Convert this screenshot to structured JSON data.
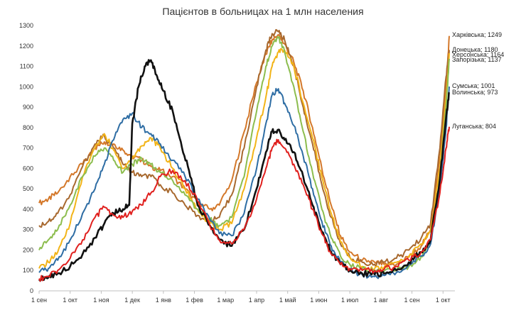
{
  "chart_data": {
    "type": "line",
    "title": "Пацієнтов в больницах на 1 млн населения",
    "xlabel": "",
    "ylabel": "",
    "ylim": [
      0,
      1300
    ],
    "y_ticks": [
      0,
      100,
      200,
      300,
      400,
      500,
      600,
      700,
      800,
      900,
      1000,
      1100,
      1200,
      1300
    ],
    "x_tick_labels": [
      "1 сен",
      "1 окт",
      "1 ноя",
      "1 дек",
      "1 янв",
      "1 фев",
      "1 мар",
      "1 апр",
      "1 май",
      "1 июн",
      "1 июл",
      "1 авг",
      "1 сен",
      "1 окт"
    ],
    "x_domain": [
      0,
      13.2
    ],
    "grid": false,
    "series": [
      {
        "name": "Харківська",
        "end_label": "Харківська; 1249",
        "color": "#d4782a",
        "width": 2,
        "points": [
          [
            0,
            430
          ],
          [
            0.3,
            450
          ],
          [
            0.6,
            480
          ],
          [
            1,
            560
          ],
          [
            1.4,
            620
          ],
          [
            1.8,
            700
          ],
          [
            2.1,
            730
          ],
          [
            2.4,
            720
          ],
          [
            2.7,
            690
          ],
          [
            3,
            660
          ],
          [
            3.3,
            640
          ],
          [
            3.6,
            610
          ],
          [
            3.9,
            590
          ],
          [
            4.3,
            560
          ],
          [
            4.7,
            500
          ],
          [
            5.1,
            430
          ],
          [
            5.5,
            400
          ],
          [
            5.8,
            420
          ],
          [
            6.2,
            540
          ],
          [
            6.6,
            780
          ],
          [
            7,
            1020
          ],
          [
            7.3,
            1160
          ],
          [
            7.5,
            1230
          ],
          [
            7.7,
            1255
          ],
          [
            7.9,
            1210
          ],
          [
            8.2,
            1120
          ],
          [
            8.5,
            980
          ],
          [
            8.8,
            800
          ],
          [
            9.1,
            600
          ],
          [
            9.4,
            420
          ],
          [
            9.7,
            270
          ],
          [
            10,
            190
          ],
          [
            10.4,
            150
          ],
          [
            10.8,
            140
          ],
          [
            11.1,
            130
          ],
          [
            11.5,
            130
          ],
          [
            11.9,
            165
          ],
          [
            12.3,
            220
          ],
          [
            12.6,
            300
          ],
          [
            12.9,
            650
          ],
          [
            13.1,
            1000
          ],
          [
            13.2,
            1249
          ]
        ]
      },
      {
        "name": "Донецька",
        "end_label": "Донецька; 1180",
        "color": "#a8692f",
        "width": 2,
        "points": [
          [
            0,
            320
          ],
          [
            0.3,
            340
          ],
          [
            0.6,
            380
          ],
          [
            1,
            470
          ],
          [
            1.4,
            610
          ],
          [
            1.8,
            720
          ],
          [
            2.1,
            760
          ],
          [
            2.4,
            700
          ],
          [
            2.7,
            620
          ],
          [
            3,
            580
          ],
          [
            3.3,
            560
          ],
          [
            3.6,
            560
          ],
          [
            3.9,
            520
          ],
          [
            4.3,
            480
          ],
          [
            4.7,
            420
          ],
          [
            5.1,
            370
          ],
          [
            5.5,
            340
          ],
          [
            5.8,
            360
          ],
          [
            6.2,
            470
          ],
          [
            6.6,
            700
          ],
          [
            7,
            1000
          ],
          [
            7.3,
            1180
          ],
          [
            7.5,
            1260
          ],
          [
            7.7,
            1270
          ],
          [
            7.9,
            1230
          ],
          [
            8.2,
            1100
          ],
          [
            8.5,
            900
          ],
          [
            8.8,
            720
          ],
          [
            9.1,
            520
          ],
          [
            9.4,
            360
          ],
          [
            9.7,
            230
          ],
          [
            10,
            165
          ],
          [
            10.4,
            140
          ],
          [
            10.8,
            130
          ],
          [
            11.1,
            140
          ],
          [
            11.5,
            160
          ],
          [
            11.9,
            200
          ],
          [
            12.3,
            260
          ],
          [
            12.6,
            330
          ],
          [
            12.9,
            700
          ],
          [
            13.1,
            1050
          ],
          [
            13.2,
            1180
          ]
        ]
      },
      {
        "name": "Херсонська",
        "end_label": "Херсонська; 1164",
        "color": "#f2b418",
        "width": 2,
        "points": [
          [
            0,
            110
          ],
          [
            0.3,
            140
          ],
          [
            0.6,
            190
          ],
          [
            1,
            330
          ],
          [
            1.4,
            560
          ],
          [
            1.8,
            700
          ],
          [
            2.1,
            770
          ],
          [
            2.4,
            690
          ],
          [
            2.7,
            600
          ],
          [
            3,
            650
          ],
          [
            3.3,
            710
          ],
          [
            3.6,
            750
          ],
          [
            3.9,
            700
          ],
          [
            4.3,
            600
          ],
          [
            4.7,
            500
          ],
          [
            5.1,
            400
          ],
          [
            5.5,
            330
          ],
          [
            5.8,
            300
          ],
          [
            6.2,
            330
          ],
          [
            6.6,
            500
          ],
          [
            7,
            750
          ],
          [
            7.3,
            950
          ],
          [
            7.5,
            1100
          ],
          [
            7.7,
            1170
          ],
          [
            7.9,
            1180
          ],
          [
            8.2,
            1100
          ],
          [
            8.5,
            920
          ],
          [
            8.8,
            750
          ],
          [
            9.1,
            560
          ],
          [
            9.4,
            380
          ],
          [
            9.7,
            240
          ],
          [
            10,
            165
          ],
          [
            10.4,
            120
          ],
          [
            10.8,
            110
          ],
          [
            11.1,
            115
          ],
          [
            11.5,
            140
          ],
          [
            11.9,
            170
          ],
          [
            12.3,
            230
          ],
          [
            12.6,
            290
          ],
          [
            12.9,
            600
          ],
          [
            13.1,
            950
          ],
          [
            13.2,
            1164
          ]
        ]
      },
      {
        "name": "Запорізька",
        "end_label": "Запорізька; 1137",
        "color": "#8cbd4e",
        "width": 2,
        "points": [
          [
            0,
            200
          ],
          [
            0.3,
            250
          ],
          [
            0.6,
            300
          ],
          [
            1,
            420
          ],
          [
            1.4,
            560
          ],
          [
            1.8,
            660
          ],
          [
            2.1,
            700
          ],
          [
            2.4,
            640
          ],
          [
            2.7,
            580
          ],
          [
            3,
            620
          ],
          [
            3.3,
            650
          ],
          [
            3.6,
            620
          ],
          [
            3.9,
            580
          ],
          [
            4.3,
            540
          ],
          [
            4.7,
            470
          ],
          [
            5.1,
            400
          ],
          [
            5.5,
            350
          ],
          [
            5.8,
            320
          ],
          [
            6.2,
            360
          ],
          [
            6.6,
            560
          ],
          [
            7,
            880
          ],
          [
            7.3,
            1100
          ],
          [
            7.5,
            1200
          ],
          [
            7.7,
            1240
          ],
          [
            7.9,
            1170
          ],
          [
            8.2,
            1000
          ],
          [
            8.5,
            780
          ],
          [
            8.8,
            580
          ],
          [
            9.1,
            400
          ],
          [
            9.4,
            260
          ],
          [
            9.7,
            170
          ],
          [
            10,
            130
          ],
          [
            10.4,
            110
          ],
          [
            10.8,
            100
          ],
          [
            11.1,
            95
          ],
          [
            11.5,
            100
          ],
          [
            11.9,
            120
          ],
          [
            12.3,
            170
          ],
          [
            12.6,
            240
          ],
          [
            12.9,
            560
          ],
          [
            13.1,
            900
          ],
          [
            13.2,
            1137
          ]
        ]
      },
      {
        "name": "Сумська",
        "end_label": "Сумська; 1001",
        "color": "#2e6da4",
        "width": 2,
        "points": [
          [
            0,
            90
          ],
          [
            0.3,
            110
          ],
          [
            0.6,
            150
          ],
          [
            1,
            250
          ],
          [
            1.4,
            380
          ],
          [
            1.8,
            500
          ],
          [
            2.1,
            620
          ],
          [
            2.4,
            740
          ],
          [
            2.7,
            840
          ],
          [
            3,
            870
          ],
          [
            3.3,
            800
          ],
          [
            3.6,
            770
          ],
          [
            3.9,
            720
          ],
          [
            4.3,
            640
          ],
          [
            4.7,
            560
          ],
          [
            5.1,
            450
          ],
          [
            5.5,
            350
          ],
          [
            5.8,
            280
          ],
          [
            6.2,
            270
          ],
          [
            6.6,
            380
          ],
          [
            7,
            600
          ],
          [
            7.3,
            820
          ],
          [
            7.5,
            960
          ],
          [
            7.7,
            990
          ],
          [
            7.9,
            920
          ],
          [
            8.2,
            810
          ],
          [
            8.5,
            660
          ],
          [
            8.8,
            500
          ],
          [
            9.1,
            340
          ],
          [
            9.4,
            220
          ],
          [
            9.7,
            140
          ],
          [
            10,
            100
          ],
          [
            10.4,
            80
          ],
          [
            10.8,
            70
          ],
          [
            11.1,
            75
          ],
          [
            11.5,
            90
          ],
          [
            11.9,
            130
          ],
          [
            12.3,
            170
          ],
          [
            12.6,
            230
          ],
          [
            12.9,
            500
          ],
          [
            13.1,
            800
          ],
          [
            13.2,
            1001
          ]
        ]
      },
      {
        "name": "Волинська",
        "end_label": "Волинська; 973",
        "color": "#111111",
        "width": 2.6,
        "points": [
          [
            0,
            55
          ],
          [
            0.3,
            65
          ],
          [
            0.6,
            85
          ],
          [
            1,
            120
          ],
          [
            1.4,
            180
          ],
          [
            1.8,
            260
          ],
          [
            2.1,
            330
          ],
          [
            2.4,
            380
          ],
          [
            2.7,
            400
          ],
          [
            2.9,
            420
          ],
          [
            3,
            820
          ],
          [
            3.2,
            1000
          ],
          [
            3.4,
            1100
          ],
          [
            3.6,
            1130
          ],
          [
            3.8,
            1050
          ],
          [
            4,
            980
          ],
          [
            4.3,
            880
          ],
          [
            4.6,
            700
          ],
          [
            4.9,
            550
          ],
          [
            5.1,
            420
          ],
          [
            5.5,
            320
          ],
          [
            5.8,
            250
          ],
          [
            6.2,
            220
          ],
          [
            6.6,
            300
          ],
          [
            7,
            500
          ],
          [
            7.3,
            680
          ],
          [
            7.5,
            780
          ],
          [
            7.7,
            790
          ],
          [
            7.9,
            740
          ],
          [
            8.2,
            680
          ],
          [
            8.5,
            560
          ],
          [
            8.8,
            420
          ],
          [
            9.1,
            290
          ],
          [
            9.4,
            190
          ],
          [
            9.7,
            130
          ],
          [
            10,
            100
          ],
          [
            10.4,
            85
          ],
          [
            10.8,
            80
          ],
          [
            11.1,
            85
          ],
          [
            11.5,
            100
          ],
          [
            11.9,
            140
          ],
          [
            12.3,
            190
          ],
          [
            12.6,
            250
          ],
          [
            12.9,
            550
          ],
          [
            13.1,
            850
          ],
          [
            13.2,
            973
          ]
        ]
      },
      {
        "name": "Луганська",
        "end_label": "Луганська; 804",
        "color": "#e0201e",
        "width": 2,
        "points": [
          [
            0,
            60
          ],
          [
            0.3,
            70
          ],
          [
            0.6,
            100
          ],
          [
            1,
            160
          ],
          [
            1.4,
            250
          ],
          [
            1.8,
            360
          ],
          [
            2.1,
            410
          ],
          [
            2.4,
            370
          ],
          [
            2.7,
            360
          ],
          [
            3,
            390
          ],
          [
            3.3,
            420
          ],
          [
            3.6,
            480
          ],
          [
            3.9,
            560
          ],
          [
            4.3,
            590
          ],
          [
            4.7,
            540
          ],
          [
            5.1,
            440
          ],
          [
            5.5,
            320
          ],
          [
            5.8,
            250
          ],
          [
            6.2,
            230
          ],
          [
            6.6,
            300
          ],
          [
            7,
            450
          ],
          [
            7.3,
            600
          ],
          [
            7.5,
            700
          ],
          [
            7.7,
            740
          ],
          [
            7.9,
            700
          ],
          [
            8.2,
            620
          ],
          [
            8.5,
            520
          ],
          [
            8.8,
            400
          ],
          [
            9.1,
            280
          ],
          [
            9.4,
            180
          ],
          [
            9.7,
            130
          ],
          [
            10,
            110
          ],
          [
            10.4,
            100
          ],
          [
            10.8,
            100
          ],
          [
            11.1,
            105
          ],
          [
            11.5,
            120
          ],
          [
            11.9,
            150
          ],
          [
            12.3,
            190
          ],
          [
            12.6,
            250
          ],
          [
            12.9,
            480
          ],
          [
            13.1,
            700
          ],
          [
            13.2,
            804
          ]
        ]
      }
    ]
  }
}
